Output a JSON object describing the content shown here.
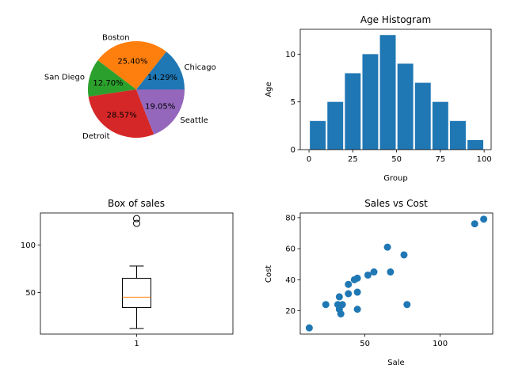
{
  "chart_data": [
    {
      "type": "pie",
      "title": "",
      "categories": [
        "Chicago",
        "Boston",
        "San Diego",
        "Detroit",
        "Seattle"
      ],
      "values": [
        14.29,
        25.4,
        12.7,
        28.57,
        19.05
      ],
      "value_labels": [
        "14.29%",
        "25.40%",
        "12.70%",
        "28.57%",
        "19.05%"
      ],
      "colors": [
        "#1f77b4",
        "#ff7f0e",
        "#2ca02c",
        "#d62728",
        "#9467bd"
      ],
      "start_angle_deg": 0,
      "direction": "counterclockwise"
    },
    {
      "type": "bar",
      "title": "Age Histogram",
      "xlabel": "Group",
      "ylabel": "Age",
      "x": [
        5,
        15,
        25,
        35,
        45,
        55,
        65,
        75,
        85,
        95
      ],
      "values": [
        3,
        5,
        8,
        10,
        12,
        9,
        7,
        5,
        3,
        1
      ],
      "bar_width": 9,
      "xlim": [
        -5,
        104
      ],
      "ylim": [
        0,
        12.6
      ],
      "xticks": [
        0,
        25,
        50,
        75,
        100
      ],
      "yticks": [
        0,
        5,
        10
      ],
      "color": "#1f77b4",
      "grid": false
    },
    {
      "type": "box",
      "title": "Box of sales",
      "xlabel": "",
      "ylabel": "",
      "categories": [
        "1"
      ],
      "box": {
        "whisker_low": 12,
        "q1": 34,
        "median": 45,
        "q3": 65,
        "whisker_high": 78,
        "outliers": [
          123,
          128
        ]
      },
      "ylim": [
        6,
        134
      ],
      "yticks": [
        50,
        100
      ],
      "median_color": "#ff7f0e",
      "grid": false
    },
    {
      "type": "scatter",
      "title": "Sales vs Cost",
      "xlabel": "Sale",
      "ylabel": "Cost",
      "points": [
        [
          13,
          9
        ],
        [
          24,
          24
        ],
        [
          32,
          24
        ],
        [
          33,
          21
        ],
        [
          33,
          29
        ],
        [
          34,
          18
        ],
        [
          35,
          24
        ],
        [
          39,
          31
        ],
        [
          39,
          37
        ],
        [
          43,
          40
        ],
        [
          45,
          41
        ],
        [
          45,
          32
        ],
        [
          45,
          21
        ],
        [
          52,
          43
        ],
        [
          56,
          45
        ],
        [
          65,
          61
        ],
        [
          67,
          45
        ],
        [
          76,
          56
        ],
        [
          78,
          24
        ],
        [
          123,
          76
        ],
        [
          129,
          79
        ]
      ],
      "xlim": [
        7,
        135
      ],
      "ylim": [
        5,
        83
      ],
      "xticks": [
        50,
        100
      ],
      "yticks": [
        20,
        40,
        60,
        80
      ],
      "color": "#1f77b4",
      "grid": false
    }
  ]
}
